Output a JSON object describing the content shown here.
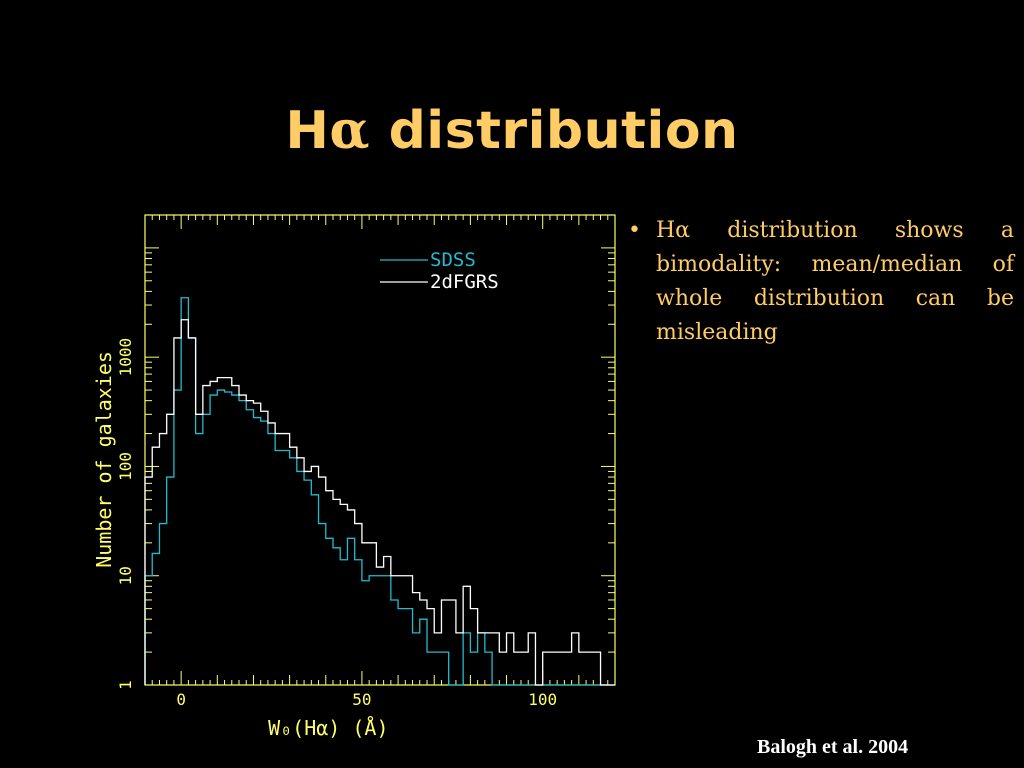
{
  "slide": {
    "title_prefix": "H",
    "title_alpha": "α",
    "title_suffix": " distribution",
    "bullet_symbol": "•",
    "bullet_text": "Hα distribution shows a bimodality: mean/median of whole distribution can be misleading",
    "citation": "Balogh et al. 2004"
  },
  "colors": {
    "background": "#000000",
    "title": "#ffcc66",
    "axes": "#ffff66",
    "sdss": "#22bbd0",
    "twodf": "#ffffff",
    "citation": "#ffffff"
  },
  "chart_data": {
    "type": "line",
    "step": true,
    "xlabel": "W₀(Hα) (Å)",
    "ylabel": "Number of galaxies",
    "xlim": [
      -10,
      120
    ],
    "ylim": [
      1,
      20000
    ],
    "y_scale": "log",
    "x_ticks": [
      0,
      50,
      100
    ],
    "x_tick_labels": [
      "0",
      "50",
      "100"
    ],
    "y_ticks": [
      1,
      10,
      100,
      1000
    ],
    "y_tick_labels": [
      "1",
      "10",
      "100",
      "1000"
    ],
    "legend_position": "top-right",
    "bin_width": 2,
    "series": [
      {
        "name": "SDSS",
        "color": "#22bbd0",
        "x": [
          -10,
          -8,
          -6,
          -4,
          -2,
          0,
          2,
          4,
          6,
          8,
          10,
          12,
          14,
          16,
          18,
          20,
          22,
          24,
          26,
          28,
          30,
          32,
          34,
          36,
          38,
          40,
          42,
          44,
          46,
          48,
          50,
          52,
          54,
          56,
          58,
          60,
          62,
          64,
          66,
          68,
          70,
          72,
          74,
          76,
          78,
          80,
          82,
          84,
          86,
          88,
          90,
          92,
          94,
          96,
          98,
          100,
          102,
          104,
          106,
          108,
          110,
          112,
          114,
          116,
          118
        ],
        "values": [
          10,
          16,
          30,
          80,
          500,
          3500,
          1500,
          200,
          300,
          450,
          500,
          480,
          450,
          400,
          330,
          280,
          260,
          200,
          140,
          140,
          120,
          90,
          75,
          55,
          30,
          22,
          18,
          14,
          22,
          14,
          9,
          10,
          10,
          10,
          6,
          5,
          5,
          3,
          4,
          2,
          2,
          2,
          1,
          1,
          3,
          2,
          3,
          2,
          1,
          1,
          1,
          1,
          1,
          1,
          1,
          1,
          1,
          1,
          1,
          1,
          1,
          1,
          1,
          1,
          1
        ]
      },
      {
        "name": "2dFGRS",
        "color": "#ffffff",
        "x": [
          -10,
          -8,
          -6,
          -4,
          -2,
          0,
          2,
          4,
          6,
          8,
          10,
          12,
          14,
          16,
          18,
          20,
          22,
          24,
          26,
          28,
          30,
          32,
          34,
          36,
          38,
          40,
          42,
          44,
          46,
          48,
          50,
          52,
          54,
          56,
          58,
          60,
          62,
          64,
          66,
          68,
          70,
          72,
          74,
          76,
          78,
          80,
          82,
          84,
          86,
          88,
          90,
          92,
          94,
          96,
          98,
          100,
          102,
          104,
          106,
          108,
          110,
          112,
          114,
          116,
          118
        ],
        "values": [
          80,
          150,
          200,
          300,
          1500,
          2200,
          1500,
          300,
          550,
          600,
          650,
          650,
          550,
          450,
          400,
          380,
          320,
          250,
          200,
          200,
          150,
          120,
          90,
          100,
          80,
          60,
          50,
          45,
          40,
          30,
          20,
          20,
          12,
          15,
          10,
          10,
          10,
          7,
          6,
          5,
          3,
          6,
          6,
          3,
          8,
          5,
          3,
          3,
          3,
          2,
          3,
          2,
          2,
          3,
          1,
          2,
          2,
          2,
          2,
          3,
          2,
          2,
          2,
          1,
          1
        ]
      }
    ]
  }
}
